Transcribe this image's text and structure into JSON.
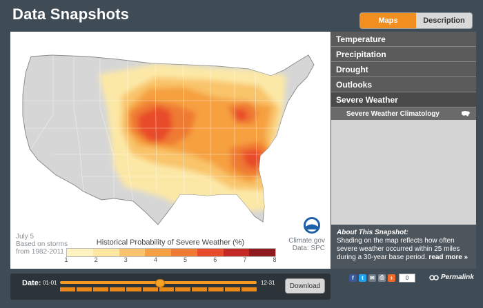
{
  "header": {
    "title": "Data Snapshots",
    "tabs": [
      "Maps",
      "Description"
    ]
  },
  "map": {
    "date_line1": "July 5",
    "date_line2": "Based on storms",
    "date_line3": "from 1982-2011",
    "legend_title": "Historical Probability of Severe Weather (%)",
    "legend_colors": [
      "#fff3c1",
      "#fde7a0",
      "#f9c46b",
      "#f6a041",
      "#ef7a32",
      "#e84b2b",
      "#c32a26",
      "#8f1a1f"
    ],
    "legend_ticks": [
      "1",
      "2",
      "3",
      "4",
      "5",
      "6",
      "7",
      "8"
    ],
    "credit1": "Climate.gov",
    "credit2": "Data: SPC"
  },
  "sidebar": {
    "categories": [
      "Temperature",
      "Precipitation",
      "Drought",
      "Outlooks",
      "Severe Weather"
    ],
    "subcategory": "Severe Weather Climatology"
  },
  "about": {
    "heading": "About This Snapshot:",
    "text": "Shading on the map reflects how often severe weather occurred within 25 miles during a 30-year base period.",
    "more": "read more »"
  },
  "bottom": {
    "date_label": "Date:",
    "start": "01-01",
    "end": "12-31",
    "slider_fraction": 0.51,
    "download": "Download"
  },
  "share": {
    "count": "0",
    "permalink": "Permalink"
  }
}
